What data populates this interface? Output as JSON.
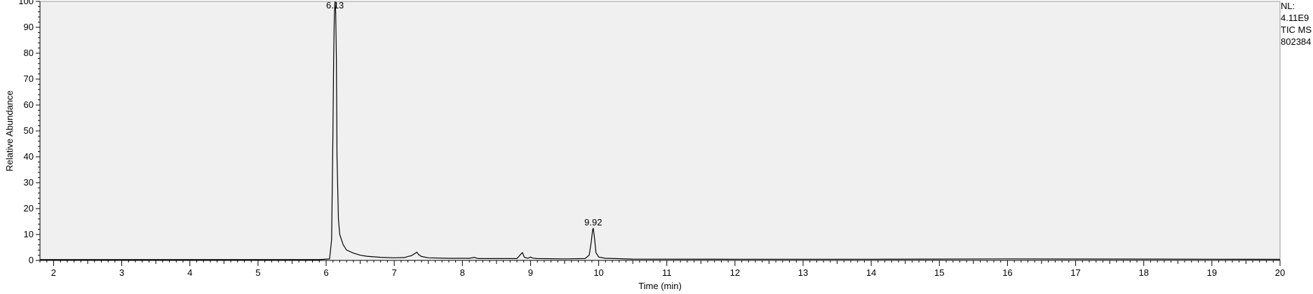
{
  "side_info": {
    "nl_label": "NL:",
    "nl_value": "4.11E9",
    "scan_filter": "TIC  MS",
    "file_id": "802384"
  },
  "chart_data": {
    "type": "line",
    "xlabel": "Time (min)",
    "ylabel": "Relative Abundance",
    "xlim": [
      1.8,
      20.0
    ],
    "ylim": [
      0,
      100
    ],
    "x_ticks": [
      2,
      3,
      4,
      5,
      6,
      7,
      8,
      9,
      10,
      11,
      12,
      13,
      14,
      15,
      16,
      17,
      18,
      19,
      20
    ],
    "y_ticks": [
      0,
      10,
      20,
      30,
      40,
      50,
      60,
      70,
      80,
      90,
      100
    ],
    "grid": false,
    "plot_background": "#f0f0f0",
    "line_color": "#000000",
    "peak_annotations": [
      {
        "label": "6.13",
        "x": 6.13,
        "y": 100
      },
      {
        "label": "9.92",
        "x": 9.92,
        "y": 12.5
      }
    ],
    "series": [
      {
        "x": [
          1.8,
          5.9,
          6.05,
          6.08,
          6.1,
          6.11,
          6.12,
          6.13,
          6.14,
          6.15,
          6.16,
          6.18,
          6.2,
          6.25,
          6.3,
          6.4,
          6.5,
          6.6,
          6.8,
          7.0,
          7.15,
          7.2,
          7.25,
          7.3,
          7.33,
          7.36,
          7.4,
          7.5,
          7.8,
          8.1,
          8.18,
          8.2,
          8.24,
          8.5,
          8.8,
          8.86,
          8.88,
          8.91,
          8.96,
          9.0,
          9.03,
          9.1,
          9.5,
          9.8,
          9.86,
          9.89,
          9.91,
          9.92,
          9.94,
          9.96,
          10.0,
          10.1,
          10.5,
          12.0,
          14.0,
          15.0,
          16.0,
          17.0,
          18.0,
          19.0,
          20.0
        ],
        "y": [
          0.3,
          0.3,
          0.6,
          8,
          50,
          78,
          95,
          100,
          96,
          78,
          40,
          16,
          10,
          6,
          4,
          2.8,
          2.0,
          1.6,
          1.2,
          1.0,
          1.1,
          1.5,
          1.8,
          2.6,
          3.2,
          2.2,
          1.5,
          1.0,
          0.8,
          0.8,
          1.2,
          0.9,
          0.7,
          0.7,
          0.7,
          2.5,
          3.0,
          1.2,
          0.8,
          1.3,
          0.9,
          0.7,
          0.6,
          0.7,
          2.0,
          7.0,
          11.5,
          12.5,
          8.5,
          3.0,
          1.3,
          0.8,
          0.5,
          0.45,
          0.45,
          0.5,
          0.6,
          0.55,
          0.5,
          0.45,
          0.4
        ]
      }
    ]
  }
}
